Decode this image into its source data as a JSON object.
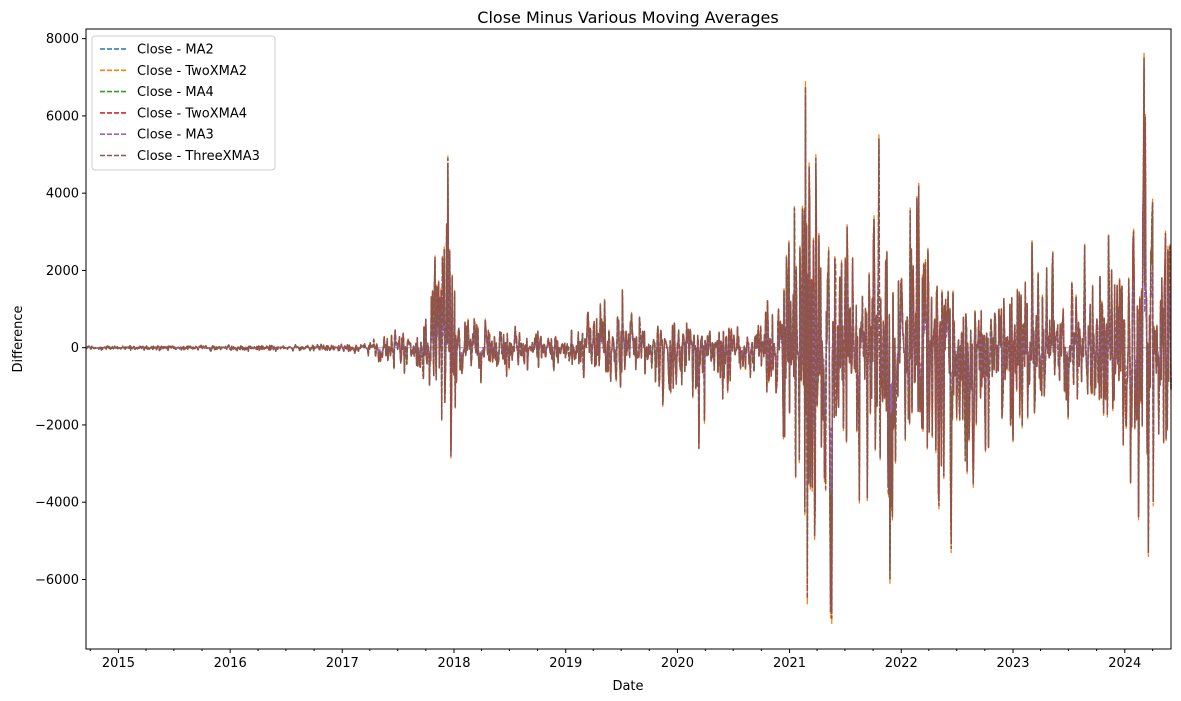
{
  "chart_data": {
    "type": "line",
    "title": "Close Minus Various Moving Averages",
    "xlabel": "Date",
    "ylabel": "Difference",
    "xlim": [
      "2014-09-17",
      "2024-05-31"
    ],
    "ylim": [
      -7800,
      8250
    ],
    "grid": false,
    "legend_position": "top-left",
    "x_ticks": [
      "2015",
      "2016",
      "2017",
      "2018",
      "2019",
      "2020",
      "2021",
      "2022",
      "2023",
      "2024"
    ],
    "y_ticks": [
      "−6000",
      "−4000",
      "−2000",
      "0",
      "2000",
      "4000",
      "6000",
      "8000"
    ],
    "series": [
      {
        "name": "Close - MA2",
        "color": "#1f77b4",
        "style": "dashed"
      },
      {
        "name": "Close - TwoXMA2",
        "color": "#ff7f0e",
        "style": "dashed"
      },
      {
        "name": "Close - MA4",
        "color": "#2ca02c",
        "style": "dashed"
      },
      {
        "name": "Close - TwoXMA4",
        "color": "#d62728",
        "style": "dashed"
      },
      {
        "name": "Close - MA3",
        "color": "#9467bd",
        "style": "dashed"
      },
      {
        "name": "Close - ThreeXMA3",
        "color": "#8c564b",
        "style": "dashed"
      }
    ],
    "envelope": [
      {
        "date": "2014-09-17",
        "max": 60,
        "min": -60
      },
      {
        "date": "2015-06-01",
        "max": 60,
        "min": -80
      },
      {
        "date": "2016-06-01",
        "max": 80,
        "min": -100
      },
      {
        "date": "2017-03-01",
        "max": 120,
        "min": -150
      },
      {
        "date": "2017-06-01",
        "max": 400,
        "min": -500
      },
      {
        "date": "2017-10-01",
        "max": 800,
        "min": -900
      },
      {
        "date": "2017-12-10",
        "max": 4900,
        "min": -2800
      },
      {
        "date": "2018-01-10",
        "max": 2000,
        "min": -2300
      },
      {
        "date": "2018-03-01",
        "max": 800,
        "min": -1000
      },
      {
        "date": "2018-09-01",
        "max": 500,
        "min": -700
      },
      {
        "date": "2019-01-01",
        "max": 400,
        "min": -600
      },
      {
        "date": "2019-06-15",
        "max": 1700,
        "min": -1300
      },
      {
        "date": "2019-09-01",
        "max": 1000,
        "min": -900
      },
      {
        "date": "2020-03-15",
        "max": 600,
        "min": -2600
      },
      {
        "date": "2020-08-01",
        "max": 800,
        "min": -700
      },
      {
        "date": "2020-12-01",
        "max": 1800,
        "min": -1400
      },
      {
        "date": "2021-01-05",
        "max": 4700,
        "min": -4600
      },
      {
        "date": "2021-02-20",
        "max": 6700,
        "min": -6500
      },
      {
        "date": "2021-05-15",
        "max": 3500,
        "min": -7000
      },
      {
        "date": "2021-07-10",
        "max": 3500,
        "min": -4000
      },
      {
        "date": "2021-10-10",
        "max": 5400,
        "min": -5000
      },
      {
        "date": "2021-12-01",
        "max": 2500,
        "min": -6000
      },
      {
        "date": "2022-02-15",
        "max": 4200,
        "min": -3000
      },
      {
        "date": "2022-06-10",
        "max": 1500,
        "min": -5200
      },
      {
        "date": "2022-11-01",
        "max": 1500,
        "min": -3900
      },
      {
        "date": "2023-03-10",
        "max": 2900,
        "min": -1800
      },
      {
        "date": "2023-05-10",
        "max": 2600,
        "min": -1700
      },
      {
        "date": "2023-09-10",
        "max": 3000,
        "min": -2000
      },
      {
        "date": "2024-01-10",
        "max": 2800,
        "min": -3200
      },
      {
        "date": "2024-03-05",
        "max": 7500,
        "min": -5300
      },
      {
        "date": "2024-04-15",
        "max": 4400,
        "min": -4300
      },
      {
        "date": "2024-05-31",
        "max": 3900,
        "min": -4000
      }
    ],
    "extreme_points": [
      {
        "date": "2017-12-12",
        "y": 4900
      },
      {
        "date": "2017-12-22",
        "y": -2800
      },
      {
        "date": "2020-03-12",
        "y": -2600
      },
      {
        "date": "2021-02-22",
        "y": 6750
      },
      {
        "date": "2021-03-01",
        "y": -6500
      },
      {
        "date": "2021-05-19",
        "y": -7000
      },
      {
        "date": "2021-10-20",
        "y": 5400
      },
      {
        "date": "2021-11-26",
        "y": -6000
      },
      {
        "date": "2022-02-28",
        "y": 4200
      },
      {
        "date": "2022-06-13",
        "y": -5200
      },
      {
        "date": "2024-03-05",
        "y": 7500
      },
      {
        "date": "2024-03-19",
        "y": -5300
      }
    ]
  }
}
